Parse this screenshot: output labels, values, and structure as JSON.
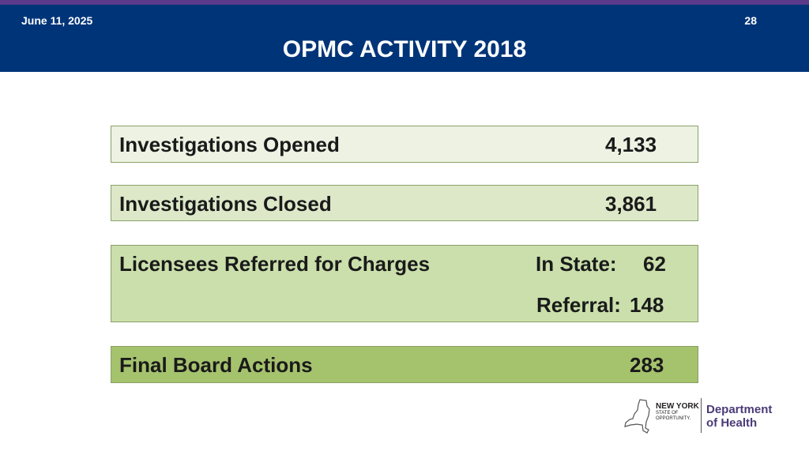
{
  "header": {
    "date": "June 11, 2025",
    "page_number": "28",
    "title": "OPMC ACTIVITY 2018"
  },
  "stats": {
    "opened": {
      "label": "Investigations Opened",
      "value": "4,133"
    },
    "closed": {
      "label": "Investigations Closed",
      "value": "3,861"
    },
    "referred": {
      "label": "Licensees Referred for Charges",
      "in_state_label": "In State:",
      "in_state_value": "62",
      "referral_label": "Referral:",
      "referral_value": "148"
    },
    "final": {
      "label": "Final Board Actions",
      "value": "283"
    }
  },
  "logo": {
    "ny_line1": "NEW YORK",
    "ny_line2": "STATE OF",
    "ny_line3": "OPPORTUNITY.",
    "doh_line1": "Department",
    "doh_line2": "of Health"
  },
  "colors": {
    "header_bg": "#003478",
    "header_strip": "#5b3a8c",
    "box1": "#edf2e3",
    "box2": "#dce8c8",
    "box3": "#cadfab",
    "box4": "#a5c26d",
    "doh_text": "#4a3a78"
  }
}
